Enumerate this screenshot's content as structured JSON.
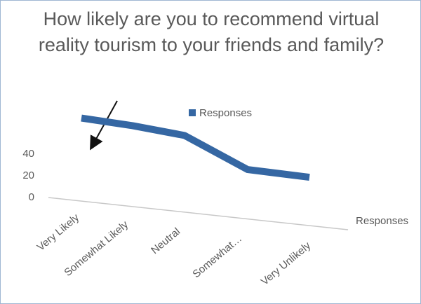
{
  "chart_data": {
    "type": "line3d",
    "title": "How likely are you to recommend virtual reality tourism to your friends and family?",
    "categories": [
      "Very Likely",
      "Somewhat Likely",
      "Neutral",
      "Somewhat…",
      "Very Unlikely"
    ],
    "series": [
      {
        "name": "Responses",
        "color": "#3567a3",
        "values": [
          39,
          37,
          33,
          7,
          6
        ]
      }
    ],
    "x_label": "Responses",
    "ylim": [
      0,
      40
    ],
    "yticks": [
      0,
      20,
      40
    ],
    "legend": "top"
  }
}
